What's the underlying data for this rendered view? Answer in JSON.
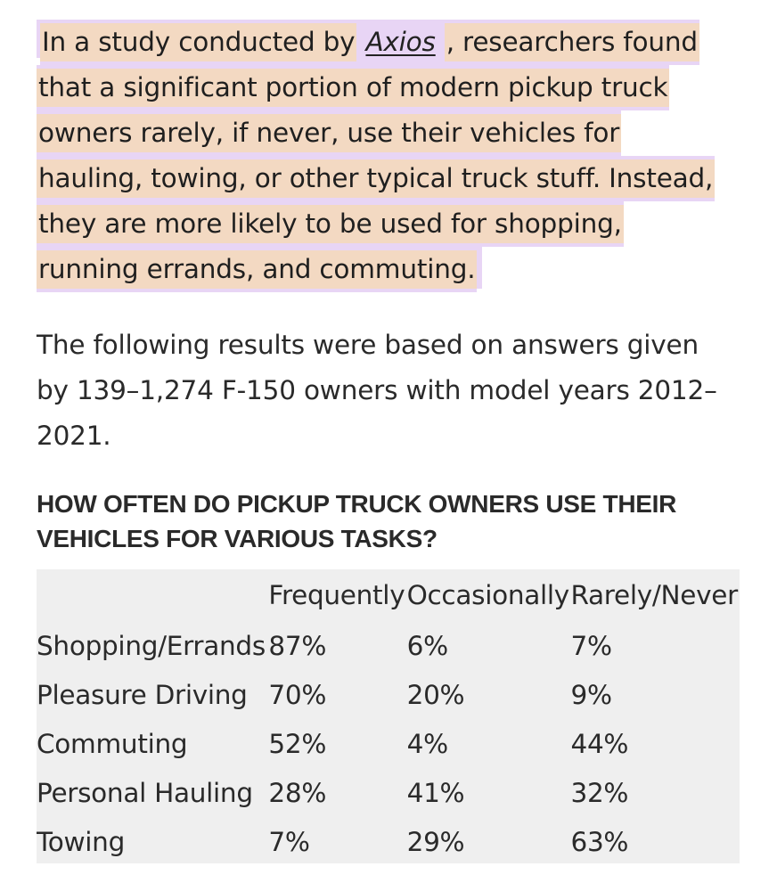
{
  "intro": {
    "line1_before": "In a study conducted by",
    "link_text": "Axios",
    "line1_after": ", researchers found",
    "line2": "that a significant portion of modern pickup truck",
    "line3": "owners rarely, if never, use their vehicles for",
    "line4": "hauling, towing, or other typical truck stuff. Instead,",
    "line5": "they are more likely to be used for shopping,",
    "line6": "running errands, and commuting."
  },
  "paragraph": {
    "line1": "The following results were based on answers given",
    "line2": "by 139–1,274 F-150 owners with model years 2012–",
    "line3": "2021."
  },
  "heading": {
    "line1": "HOW OFTEN DO PICKUP TRUCK OWNERS USE THEIR",
    "line2": "VEHICLES FOR VARIOUS TASKS?"
  },
  "table": {
    "columns": [
      "Frequently",
      "Occasionally",
      "Rarely/Never"
    ],
    "rows": [
      {
        "label": "Shopping/Errands",
        "values": [
          "87%",
          "6%",
          "7%"
        ]
      },
      {
        "label": "Pleasure Driving",
        "values": [
          "70%",
          "20%",
          "9%"
        ]
      },
      {
        "label": "Commuting",
        "values": [
          "52%",
          "4%",
          "44%"
        ]
      },
      {
        "label": "Personal Hauling",
        "values": [
          "28%",
          "41%",
          "32%"
        ]
      },
      {
        "label": "Towing",
        "values": [
          "7%",
          "29%",
          "63%"
        ]
      }
    ]
  },
  "colors": {
    "highlight": "#f3d9c2",
    "highlight_edge": "#e8d5f5",
    "table_background": "#efefef",
    "text": "#2a2a2a"
  }
}
